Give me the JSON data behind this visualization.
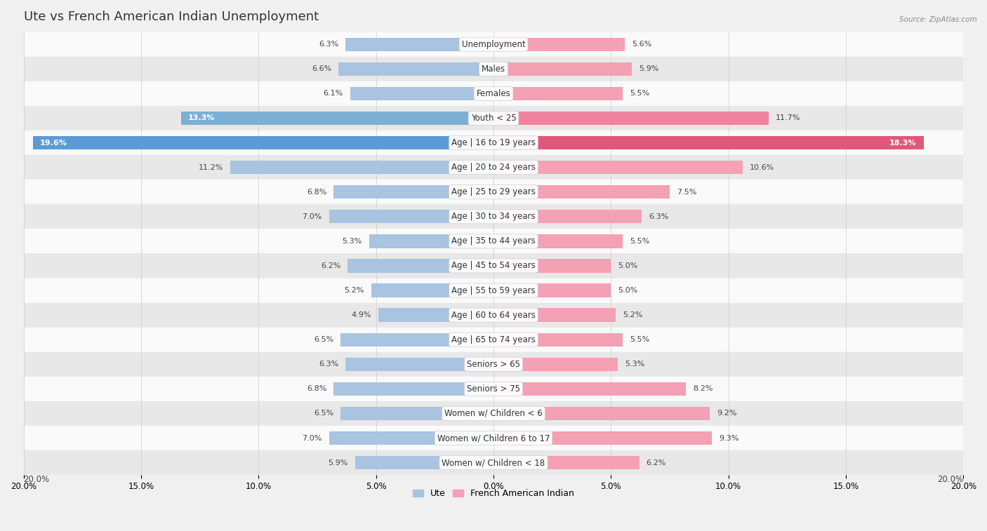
{
  "title": "Ute vs French American Indian Unemployment",
  "source": "Source: ZipAtlas.com",
  "categories": [
    "Unemployment",
    "Males",
    "Females",
    "Youth < 25",
    "Age | 16 to 19 years",
    "Age | 20 to 24 years",
    "Age | 25 to 29 years",
    "Age | 30 to 34 years",
    "Age | 35 to 44 years",
    "Age | 45 to 54 years",
    "Age | 55 to 59 years",
    "Age | 60 to 64 years",
    "Age | 65 to 74 years",
    "Seniors > 65",
    "Seniors > 75",
    "Women w/ Children < 6",
    "Women w/ Children 6 to 17",
    "Women w/ Children < 18"
  ],
  "ute_values": [
    6.3,
    6.6,
    6.1,
    13.3,
    19.6,
    11.2,
    6.8,
    7.0,
    5.3,
    6.2,
    5.2,
    4.9,
    6.5,
    6.3,
    6.8,
    6.5,
    7.0,
    5.9
  ],
  "fai_values": [
    5.6,
    5.9,
    5.5,
    11.7,
    18.3,
    10.6,
    7.5,
    6.3,
    5.5,
    5.0,
    5.0,
    5.2,
    5.5,
    5.3,
    8.2,
    9.2,
    9.3,
    6.2
  ],
  "ute_color_normal": "#a8c4e0",
  "ute_color_medium": "#7bafd4",
  "ute_color_high": "#5b9bd5",
  "fai_color_normal": "#f4a0b5",
  "fai_color_medium": "#ee82a0",
  "fai_color_high": "#e05878",
  "bg_color": "#f0f0f0",
  "row_color_light": "#fafafa",
  "row_color_dark": "#e8e8e8",
  "xlim": 20.0,
  "legend_ute": "Ute",
  "legend_fai": "French American Indian",
  "title_fontsize": 13,
  "label_fontsize": 8.5,
  "value_fontsize": 8.0,
  "axis_fontsize": 8.5
}
